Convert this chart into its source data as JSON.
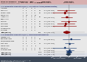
{
  "obs_studies": [
    {
      "name": "Allaf 2002",
      "le": "0",
      "lt": "11",
      "oe": "0",
      "ot": "12",
      "or": null,
      "ci_lo": null,
      "ci_hi": null,
      "w": "",
      "orv": ""
    },
    {
      "name": "Gabr 2009",
      "le": "1",
      "lt": "43",
      "oe": "2",
      "ot": "43",
      "or": 0.48,
      "ci_lo": 0.04,
      "ci_hi": 5.85,
      "w": "1.3",
      "orv": "0.48 [0.04, 5.85]"
    },
    {
      "name": "Gonzalez 2005",
      "le": "0",
      "lt": "50",
      "oe": "1",
      "ot": "50",
      "or": 0.33,
      "ci_lo": 0.01,
      "ci_hi": 8.28,
      "w": "0.8",
      "orv": "0.33 [0.01, 8.28]"
    },
    {
      "name": "Hemal 2007",
      "le": "0",
      "lt": "100",
      "oe": "0",
      "ot": "100",
      "or": null,
      "ci_lo": null,
      "ci_hi": null,
      "w": "",
      "orv": ""
    },
    {
      "name": "Inman 2003",
      "le": "3",
      "lt": "40",
      "oe": "5",
      "ot": "40",
      "or": 0.57,
      "ci_lo": 0.13,
      "ci_hi": 2.57,
      "w": "3.6",
      "orv": "0.57 [0.13, 2.57]"
    },
    {
      "name": "Nadler 2006",
      "le": "0",
      "lt": "15",
      "oe": "0",
      "ot": "15",
      "or": null,
      "ci_lo": null,
      "ci_hi": null,
      "w": "",
      "orv": ""
    },
    {
      "name": "Ost 2002",
      "le": "2",
      "lt": "35",
      "oe": "2",
      "ot": "35",
      "or": 1.0,
      "ci_lo": 0.13,
      "ci_hi": 7.68,
      "w": "2.0",
      "orv": "1.00 [0.13, 7.68]"
    },
    {
      "name": "Portis 2002",
      "le": "1",
      "lt": "50",
      "oe": "2",
      "ot": "45",
      "or": 0.44,
      "ci_lo": 0.04,
      "ci_hi": 5.01,
      "w": "1.3",
      "orv": "0.44 [0.04, 5.01]"
    },
    {
      "name": "Saika 2003",
      "le": "0",
      "lt": "21",
      "oe": "1",
      "ot": "22",
      "or": 0.34,
      "ci_lo": 0.01,
      "ci_hi": 8.72,
      "w": "0.8",
      "orv": "0.34 [0.01, 8.72]"
    },
    {
      "name": "Steinberg 2004",
      "le": "0",
      "lt": "45",
      "oe": "0",
      "ot": "45",
      "or": null,
      "ci_lo": null,
      "ci_hi": null,
      "w": "",
      "orv": ""
    },
    {
      "name": "Wolf 1998",
      "le": "0",
      "lt": "12",
      "oe": "0",
      "ot": "12",
      "or": null,
      "ci_lo": null,
      "ci_hi": null,
      "w": "",
      "orv": ""
    }
  ],
  "obs_pooled": {
    "or": 0.6,
    "ci_lo": 0.24,
    "ci_hi": 1.52,
    "w": "9.8%",
    "orv": "0.60 [0.24, 1.52]"
  },
  "rct_studies": [
    {
      "name": "Cadeddu 2001",
      "le": "0",
      "lt": "13",
      "oe": "0",
      "ot": "13",
      "or": null,
      "ci_lo": null,
      "ci_hi": null,
      "w": "",
      "orv": ""
    },
    {
      "name": "Nambirajan 2004",
      "le": "2",
      "lt": "30",
      "oe": "1",
      "ot": "30",
      "or": 2.06,
      "ci_lo": 0.18,
      "ci_hi": 23.9,
      "w": "1.3",
      "orv": "2.06 [0.18, 23.9]"
    },
    {
      "name": "Permpongkosol 2006",
      "le": "0",
      "lt": "20",
      "oe": "0",
      "ot": "20",
      "or": null,
      "ci_lo": null,
      "ci_hi": null,
      "w": "",
      "orv": ""
    },
    {
      "name": "Right 2001",
      "le": "8",
      "lt": "35",
      "oe": "7",
      "ot": "36",
      "or": 1.2,
      "ci_lo": 0.37,
      "ci_hi": 3.89,
      "w": "6.4",
      "orv": "1.20 [0.37, 3.89]"
    },
    {
      "name": "Sharma 1997",
      "le": "0",
      "lt": "9",
      "oe": "0",
      "ot": "9",
      "or": null,
      "ci_lo": null,
      "ci_hi": null,
      "w": "",
      "orv": ""
    },
    {
      "name": "Soulie 2001",
      "le": "0",
      "lt": "22",
      "oe": "1",
      "ot": "22",
      "or": 0.32,
      "ci_lo": 0.01,
      "ci_hi": 8.22,
      "w": "0.8",
      "orv": "0.32 [0.01, 8.22]"
    },
    {
      "name": "Srirangam 2008",
      "le": "9",
      "lt": "55",
      "oe": "7",
      "ot": "55",
      "or": 1.32,
      "ci_lo": 0.45,
      "ci_hi": 3.87,
      "w": "7.0",
      "orv": "1.32 [0.45, 3.87]"
    }
  ],
  "rct_pooled": {
    "or": 1.2,
    "ci_lo": 0.57,
    "ci_hi": 2.52,
    "w": "15.5%",
    "orv": "1.20 [0.57, 2.52]"
  },
  "overall_pooled": {
    "or": 0.97,
    "ci_lo": 0.53,
    "ci_hi": 1.78,
    "w": "25.3%",
    "orv": "0.97 [0.53, 1.78]"
  },
  "header_top_bg": "#d4a0a0",
  "header_row_bg": "#c0c8d8",
  "section_obs_bg": "#c0c8d8",
  "section_rct_bg": "#c0c8d8",
  "footer_bg": "#2c3e50",
  "diamond_obs": "#8B0000",
  "diamond_rct": "#1a3a6e",
  "square_obs": "#8B0000",
  "square_rct": "#1a3a6e",
  "bg": "#f0f0f0",
  "plot_lo": 0.01,
  "plot_hi": 100
}
